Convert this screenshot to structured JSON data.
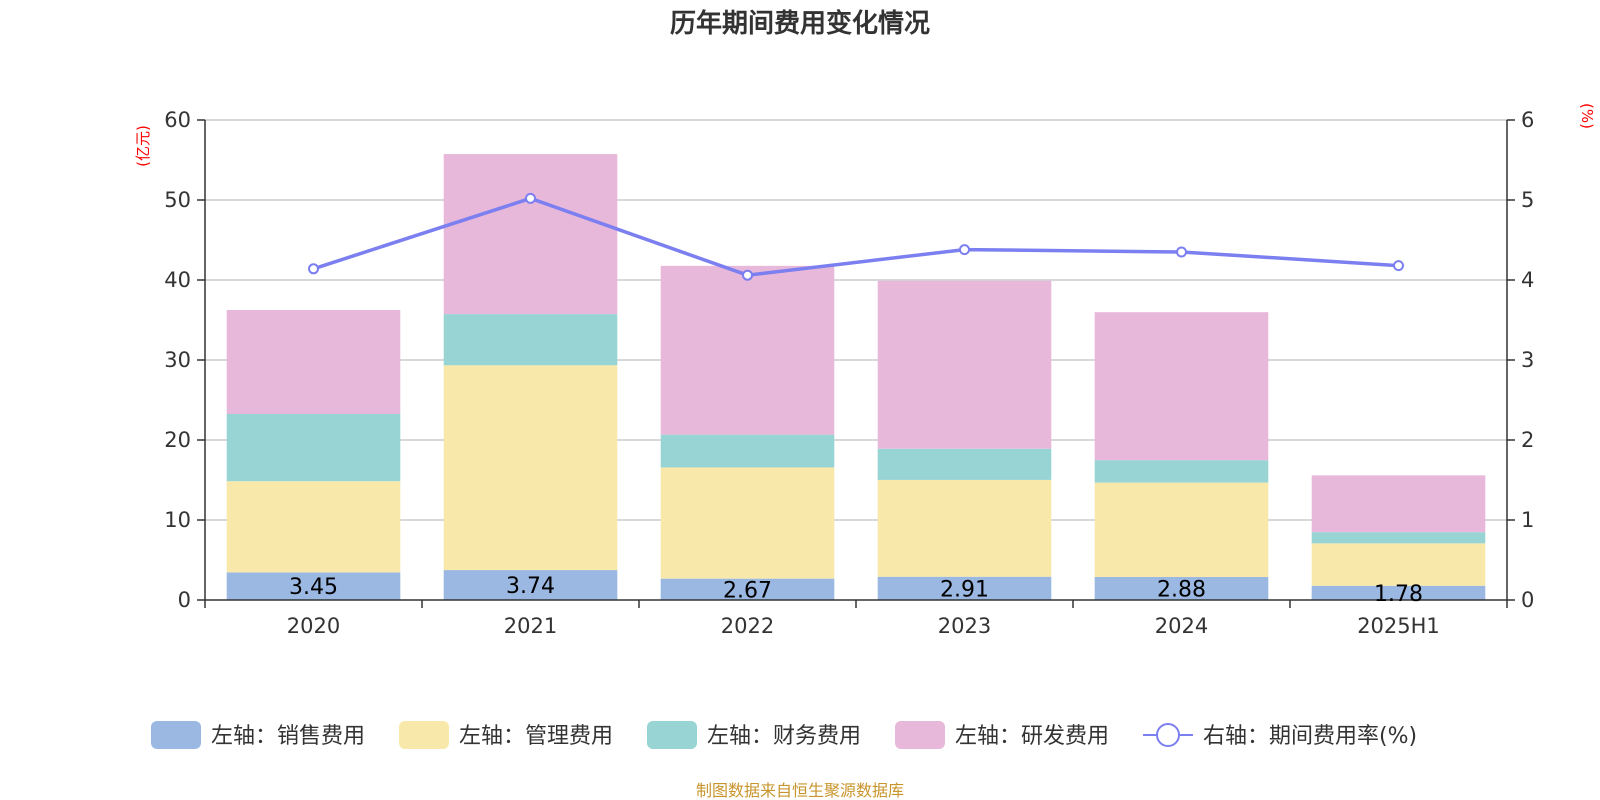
{
  "chart_data": {
    "type": "bar",
    "stacked": true,
    "title": "历年期间费用变化情况",
    "categories": [
      "2020",
      "2021",
      "2022",
      "2023",
      "2024",
      "2025H1"
    ],
    "left_axis": {
      "unit": "(亿元)",
      "ylim": [
        0,
        60
      ],
      "ticks": [
        "0",
        "10",
        "20",
        "30",
        "40",
        "50",
        "60"
      ]
    },
    "right_axis": {
      "unit": "(%)",
      "ylim": [
        0,
        6
      ],
      "ticks": [
        "0",
        "1",
        "2",
        "3",
        "4",
        "5",
        "6"
      ]
    },
    "series": [
      {
        "name": "左轴：销售费用",
        "type": "bar",
        "axis": "left",
        "color": "#9bb8e3",
        "values": [
          3.45,
          3.74,
          2.67,
          2.91,
          2.88,
          1.78
        ],
        "labels": [
          "3.45",
          "3.74",
          "2.67",
          "2.91",
          "2.88",
          "1.78"
        ]
      },
      {
        "name": "左轴：管理费用",
        "type": "bar",
        "axis": "left",
        "color": "#f8e8a9",
        "values": [
          11.4,
          25.6,
          13.9,
          12.1,
          11.8,
          5.3
        ]
      },
      {
        "name": "左轴：财务费用",
        "type": "bar",
        "axis": "left",
        "color": "#99d4d5",
        "values": [
          8.4,
          6.4,
          4.1,
          3.9,
          2.8,
          1.4
        ]
      },
      {
        "name": "左轴：研发费用",
        "type": "bar",
        "axis": "left",
        "color": "#e8b8da",
        "values": [
          13.0,
          20.0,
          21.1,
          21.0,
          18.5,
          7.1
        ]
      },
      {
        "name": "右轴：期间费用率(%)",
        "type": "line",
        "axis": "right",
        "color": "#7b7ff0",
        "values": [
          4.14,
          5.02,
          4.06,
          4.38,
          4.35,
          4.18
        ]
      }
    ],
    "grid": true,
    "legend_position": "bottom"
  },
  "source_note": "制图数据来自恒生聚源数据库"
}
